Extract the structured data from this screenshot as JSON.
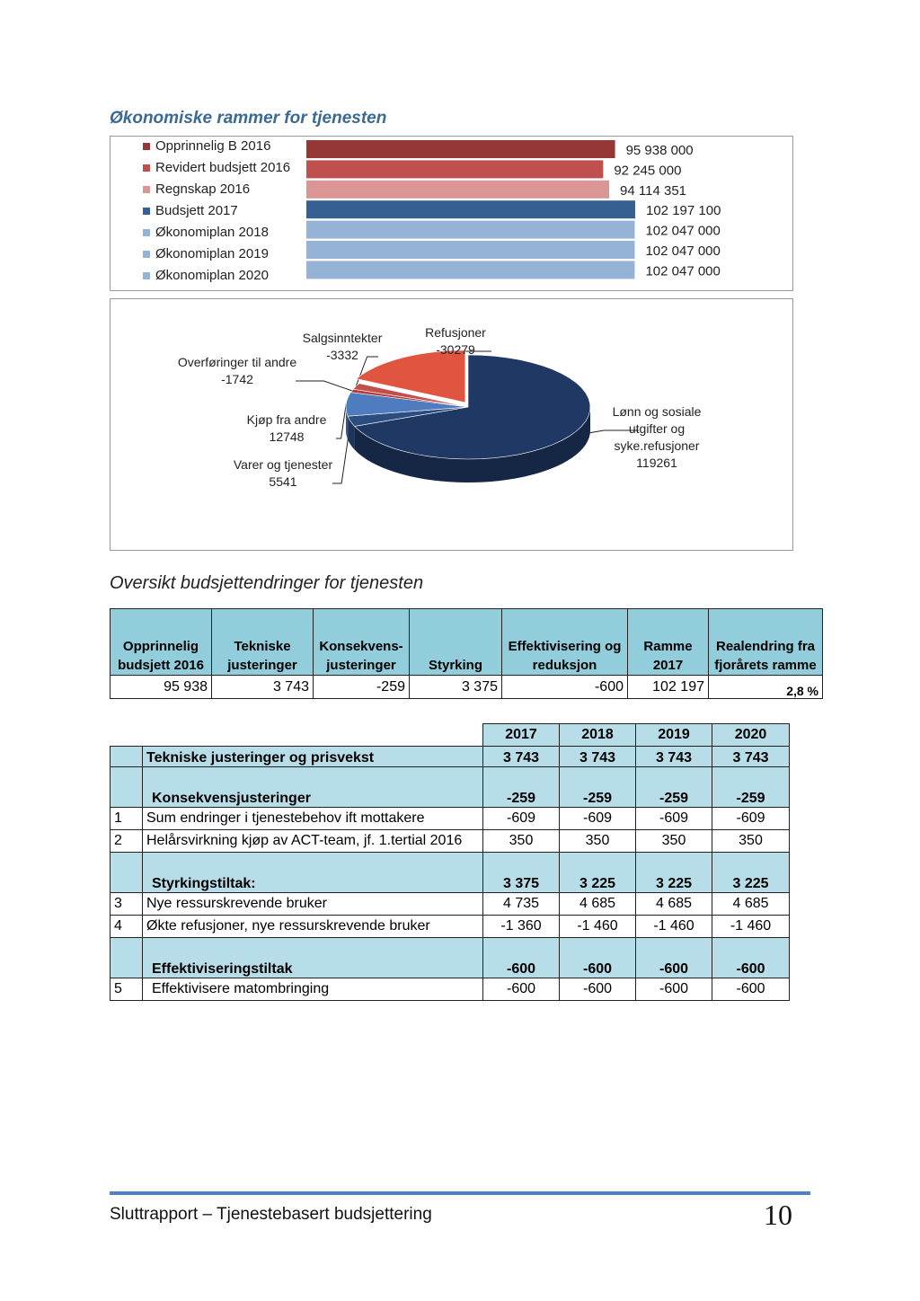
{
  "heading": "Økonomiske rammer for tjenesten",
  "chart_data": [
    {
      "type": "bar",
      "orientation": "horizontal",
      "series": [
        {
          "name": "Opprinnelig B 2016",
          "color": "#953735",
          "values": [
            95938000
          ],
          "value_labels": [
            "95 938 000"
          ]
        },
        {
          "name": "Revidert budsjett 2016",
          "color": "#c0504d",
          "values": [
            92245000
          ],
          "value_labels": [
            "92 245 000"
          ]
        },
        {
          "name": "Regnskap 2016",
          "color": "#d99694",
          "values": [
            94114351
          ],
          "value_labels": [
            "94 114 351"
          ]
        },
        {
          "name": "Budsjett 2017",
          "color": "#376092",
          "values": [
            102197100
          ],
          "value_labels": [
            "102 197 100"
          ]
        },
        {
          "name": "Økonomiplan 2018",
          "color": "#95b3d7",
          "values": [
            102047000
          ],
          "value_labels": [
            "102 047 000"
          ]
        },
        {
          "name": "Økonomiplan 2019",
          "color": "#95b3d7",
          "values": [
            102047000
          ],
          "value_labels": [
            "102 047 000"
          ]
        },
        {
          "name": "Økonomiplan 2020",
          "color": "#95b3d7",
          "values": [
            102047000
          ],
          "value_labels": [
            "102 047 000"
          ]
        }
      ]
    },
    {
      "type": "pie",
      "categories": [
        "Lønn og sosiale utgifter og syke.refusjoner",
        "Varer og tjenester",
        "Kjøp fra andre",
        "Overføringer til andre",
        "Salgsinntekter",
        "Refusjoner"
      ],
      "values": [
        119261,
        5541,
        12748,
        -1742,
        -3332,
        -30279
      ],
      "colors": [
        "#1f3864",
        "#2b4d80",
        "#4f7bbf",
        "#b83c35",
        "#c0504d",
        "#e0553f"
      ]
    }
  ],
  "section_title": "Oversikt budsjettendringer for tjenesten",
  "summary_table": {
    "header": [
      "Opprinnelig budsjett 2016",
      "Tekniske justeringer",
      "Konsekvens-justeringer",
      "Styrking",
      "Effektivisering og reduksjon",
      "Ramme 2017",
      "Realendring fra fjorårets ramme"
    ],
    "rows": [
      [
        "95 938",
        "3 743",
        "-259",
        "3 375",
        "-600",
        "102 197",
        "2,8 %"
      ]
    ]
  },
  "detail_table": {
    "header": [
      "2017",
      "2018",
      "2019",
      "2020"
    ],
    "groups": [
      {
        "title": "Tekniske justeringer og prisvekst",
        "totals": [
          "3 743",
          "3 743",
          "3 743",
          "3 743"
        ],
        "items": []
      },
      {
        "title": "Konsekvensjusteringer",
        "totals": [
          "-259",
          "-259",
          "-259",
          "-259"
        ],
        "items": [
          {
            "no": "1",
            "label": "Sum endringer i tjenestebehov ift mottakere",
            "values": [
              "-609",
              "-609",
              "-609",
              "-609"
            ]
          },
          {
            "no": "2",
            "label": "Helårsvirkning kjøp av ACT-team, jf. 1.tertial 2016",
            "values": [
              "350",
              "350",
              "350",
              "350"
            ]
          }
        ]
      },
      {
        "title": "Styrkingstiltak:",
        "totals": [
          "3 375",
          "3 225",
          "3 225",
          "3 225"
        ],
        "items": [
          {
            "no": "3",
            "label": "Nye ressurskrevende bruker",
            "values": [
              "4 735",
              "4 685",
              "4 685",
              "4 685"
            ]
          },
          {
            "no": "4",
            "label": "Økte refusjoner, nye ressurskrevende bruker",
            "values": [
              "-1 360",
              "-1 460",
              "-1 460",
              "-1 460"
            ]
          }
        ]
      },
      {
        "title": "Effektiviseringstiltak",
        "totals": [
          "-600",
          "-600",
          "-600",
          "-600"
        ],
        "items": [
          {
            "no": "5",
            "label": "Effektivisere matombringing",
            "values": [
              "-600",
              "-600",
              "-600",
              "-600"
            ]
          }
        ]
      }
    ]
  },
  "footer": {
    "text": "Sluttrapport – Tjenestebasert budsjettering",
    "page": "10"
  }
}
